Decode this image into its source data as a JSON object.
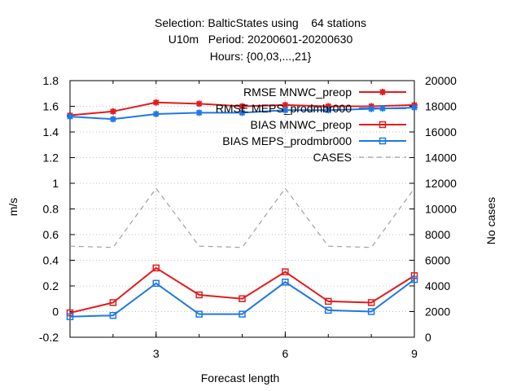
{
  "title": {
    "line1": "Selection: BalticStates using    64 stations",
    "line2": "U10m   Period: 20200601-20200630",
    "line3": "Hours: {00,03,...,21}"
  },
  "chart_data": {
    "type": "line",
    "xlabel": "Forecast length",
    "ylabel": "m/s",
    "y2label": "No cases",
    "x": [
      1,
      2,
      3,
      4,
      5,
      6,
      7,
      8,
      9
    ],
    "xlim": [
      1,
      9
    ],
    "xticks": [
      "3",
      "6",
      "9"
    ],
    "ylim": [
      -0.2,
      1.8
    ],
    "yticks": [
      "-0.2",
      "0",
      "0.2",
      "0.4",
      "0.6",
      "0.8",
      "1",
      "1.2",
      "1.4",
      "1.6",
      "1.8"
    ],
    "y2lim": [
      0,
      20000
    ],
    "y2ticks": [
      "0",
      "2000",
      "4000",
      "6000",
      "8000",
      "10000",
      "12000",
      "14000",
      "16000",
      "18000",
      "20000"
    ],
    "grid": true,
    "legend_position": "top-right",
    "series": [
      {
        "name": "RMSE MNWC_preop",
        "color": "#e31a1c",
        "marker": "star",
        "axis": "y",
        "values": [
          1.53,
          1.56,
          1.63,
          1.62,
          1.6,
          1.61,
          1.6,
          1.6,
          1.61
        ]
      },
      {
        "name": "RMSE MEPS_prodmbr000",
        "color": "#1f78e4",
        "marker": "star",
        "axis": "y",
        "values": [
          1.52,
          1.5,
          1.54,
          1.55,
          1.55,
          1.57,
          1.57,
          1.58,
          1.59
        ]
      },
      {
        "name": "BIAS MNWC_preop",
        "color": "#e31a1c",
        "marker": "square",
        "axis": "y",
        "values": [
          -0.01,
          0.07,
          0.34,
          0.13,
          0.1,
          0.31,
          0.08,
          0.07,
          0.28
        ]
      },
      {
        "name": "BIAS MEPS_prodmbr000",
        "color": "#1f78e4",
        "marker": "square",
        "axis": "y",
        "values": [
          -0.04,
          -0.03,
          0.22,
          -0.02,
          -0.02,
          0.23,
          0.01,
          0.0,
          0.25
        ]
      },
      {
        "name": "CASES",
        "color": "#a0a0a0",
        "marker": "none",
        "dashed": true,
        "axis": "y2",
        "values": [
          7100,
          7000,
          11600,
          7100,
          7000,
          11600,
          7100,
          7000,
          11600
        ]
      }
    ]
  }
}
